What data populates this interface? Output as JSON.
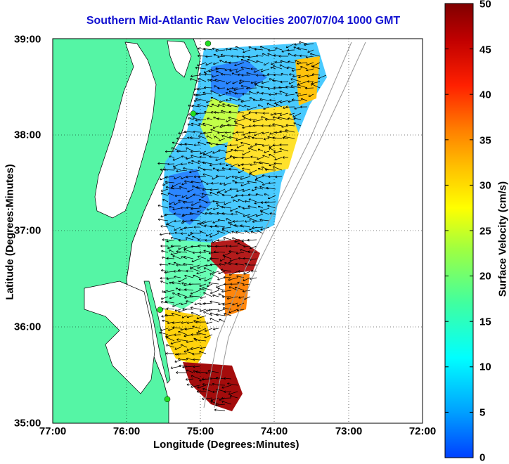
{
  "title": "Southern Mid-Atlantic Raw Velocities 2007/07/04 1000 GMT",
  "x_axis": {
    "label": "Longitude (Degrees:Minutes)",
    "ticks": [
      "77:00",
      "76:00",
      "75:00",
      "74:00",
      "73:00",
      "72:00"
    ]
  },
  "y_axis": {
    "label": "Latitude (Degrees:Minutes)",
    "ticks": [
      "39:00",
      "38:00",
      "37:00",
      "36:00",
      "35:00"
    ]
  },
  "colorbar": {
    "label": "Surface Velocity (cm/s)",
    "ticks": [
      "50",
      "45",
      "40",
      "35",
      "30",
      "25",
      "20",
      "15",
      "10",
      "5",
      "0"
    ],
    "colors": [
      "#0040ff",
      "#00a0ff",
      "#00ffff",
      "#40ffa0",
      "#a0ff40",
      "#ffff00",
      "#ffc000",
      "#ff8000",
      "#ff2000",
      "#c00000",
      "#800000"
    ]
  },
  "map": {
    "lon_range": [
      -77,
      -72
    ],
    "lat_range": [
      35,
      39
    ],
    "grid": true,
    "land_color": "#55f5a5",
    "coast_color": "#000000",
    "station_color": "#22dd22",
    "stations": [
      {
        "lon": -74.9,
        "lat": 38.95
      },
      {
        "lon": -75.1,
        "lat": 38.22
      },
      {
        "lon": -75.55,
        "lat": 36.18
      },
      {
        "lon": -75.45,
        "lat": 35.25
      }
    ]
  }
}
